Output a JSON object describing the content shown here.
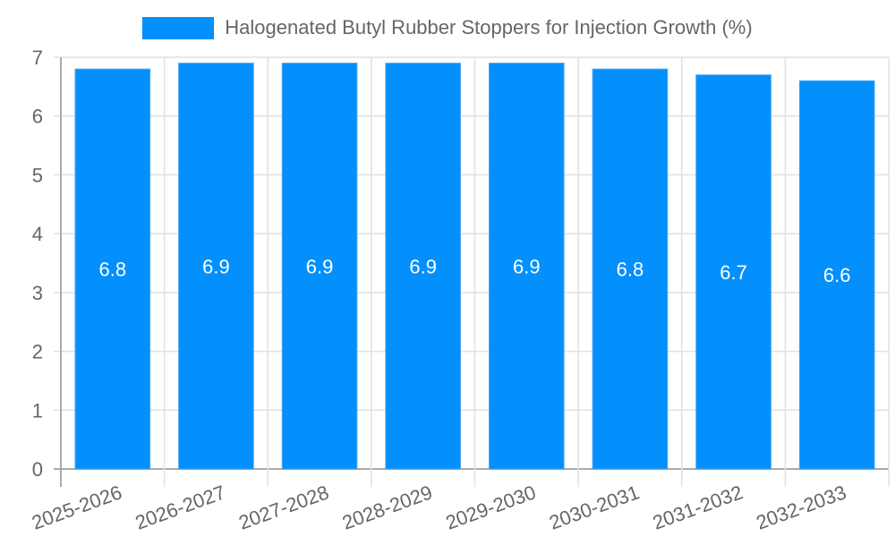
{
  "legend": {
    "label": "Halogenated Butyl Rubber Stoppers for Injection Growth (%)",
    "color": "#038ffc"
  },
  "chart_data": {
    "type": "bar",
    "title": "",
    "xlabel": "",
    "ylabel": "",
    "categories": [
      "2025-2026",
      "2026-2027",
      "2027-2028",
      "2028-2029",
      "2029-2030",
      "2030-2031",
      "2031-2032",
      "2032-2033"
    ],
    "series": [
      {
        "name": "Halogenated Butyl Rubber Stoppers for Injection Growth (%)",
        "values": [
          6.8,
          6.9,
          6.9,
          6.9,
          6.9,
          6.8,
          6.7,
          6.6
        ],
        "color": "#038ffc"
      }
    ],
    "ylim": [
      0,
      7
    ],
    "yticks": [
      0,
      1,
      2,
      3,
      4,
      5,
      6,
      7
    ],
    "grid": true,
    "legend_position": "top",
    "data_labels": true
  }
}
